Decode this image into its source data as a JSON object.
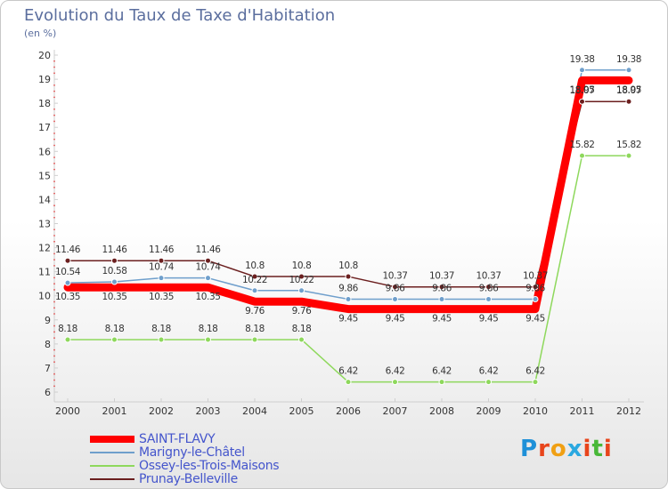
{
  "title": "Evolution du Taux de Taxe d'Habitation",
  "subtitle": "(en %)",
  "chart_data": {
    "type": "line",
    "title": "Evolution du Taux de Taxe d'Habitation",
    "ylabel": "(en %)",
    "xlabel": "",
    "categories": [
      "2000",
      "2001",
      "2002",
      "2003",
      "2004",
      "2005",
      "2006",
      "2007",
      "2008",
      "2009",
      "2010",
      "2011",
      "2012"
    ],
    "ylim": [
      6,
      20
    ],
    "yticks": [
      6,
      7,
      8,
      9,
      10,
      11,
      12,
      13,
      14,
      15,
      16,
      17,
      18,
      19,
      20
    ],
    "grid": false,
    "legend_position": "bottom-left",
    "series": [
      {
        "name": "Prunay-Belleville",
        "color": "#6b1f1f",
        "width": 1.5,
        "values": [
          11.46,
          11.46,
          11.46,
          11.46,
          10.8,
          10.8,
          10.8,
          10.37,
          10.37,
          10.37,
          10.37,
          18.07,
          18.07
        ]
      },
      {
        "name": "Ossey-les-Trois-Maisons",
        "color": "#8ed85c",
        "width": 1.5,
        "values": [
          8.18,
          8.18,
          8.18,
          8.18,
          8.18,
          8.18,
          6.42,
          6.42,
          6.42,
          6.42,
          6.42,
          15.82,
          15.82
        ]
      },
      {
        "name": "Marigny-le-Châtel",
        "color": "#6f9fcc",
        "width": 1.5,
        "values": [
          10.54,
          10.58,
          10.74,
          10.74,
          10.22,
          10.22,
          9.86,
          9.86,
          9.86,
          9.86,
          9.86,
          19.38,
          19.38
        ]
      },
      {
        "name": "SAINT-FLAVY",
        "color": "#ff0000",
        "width": 9,
        "values": [
          10.35,
          10.35,
          10.35,
          10.35,
          9.76,
          9.76,
          9.45,
          9.45,
          9.45,
          9.45,
          9.45,
          18.95,
          18.95
        ]
      }
    ],
    "legend": [
      "SAINT-FLAVY",
      "Marigny-le-Châtel",
      "Ossey-les-Trois-Maisons",
      "Prunay-Belleville"
    ]
  },
  "logo": {
    "letters": [
      "P",
      "r",
      "o",
      "x",
      "i",
      "t",
      "i"
    ],
    "colors": [
      "#1e90d8",
      "#e8451c",
      "#f0a014",
      "#2aa8e0",
      "#e8451c",
      "#48b838",
      "#e8451c"
    ]
  }
}
